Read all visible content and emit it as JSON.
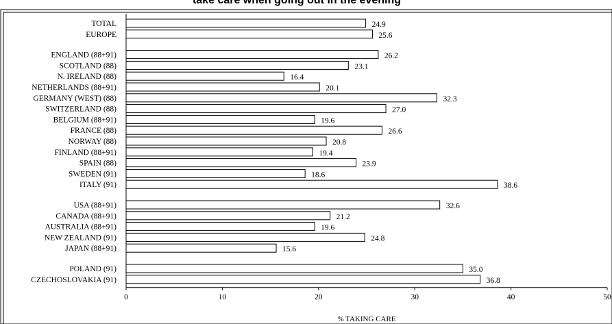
{
  "chart_data": {
    "type": "bar",
    "orientation": "horizontal",
    "title": "take care when going out in the evening",
    "xlabel": "% TAKING CARE",
    "ylabel": "",
    "xlim": [
      0,
      50
    ],
    "xticks": [
      "0",
      "10",
      "20",
      "30",
      "40",
      "50"
    ],
    "grid": false,
    "legend": "none",
    "bar_color": "#ffffff",
    "groups": [
      {
        "categories": [
          "TOTAL",
          "EUROPE"
        ],
        "values": [
          24.9,
          25.6
        ],
        "labels": [
          "24.9",
          "25.6"
        ]
      },
      {
        "categories": [
          "ENGLAND (88+91)",
          "SCOTLAND (88)",
          "N. IRELAND (88)",
          "NETHERLANDS (88+91)",
          "GERMANY (WEST) (88)",
          "SWITZERLAND (88)",
          "BELGIUM (88+91)",
          "FRANCE (88)",
          "NORWAY (88)",
          "FINLAND (88+91)",
          "SPAIN (88)",
          "SWEDEN (91)",
          "ITALY (91)"
        ],
        "values": [
          26.2,
          23.1,
          16.4,
          20.1,
          32.3,
          27.0,
          19.6,
          26.6,
          20.8,
          19.4,
          23.9,
          18.6,
          38.6
        ],
        "labels": [
          "26.2",
          "23.1",
          "16.4",
          "20.1",
          "32.3",
          "27.0",
          "19.6",
          "26.6",
          "20.8",
          "19.4",
          "23.9",
          "18.6",
          "38.6"
        ]
      },
      {
        "categories": [
          "USA (88+91)",
          "CANADA (88+91)",
          "AUSTRALIA (88+91)",
          "NEW ZEALAND (91)",
          "JAPAN (88+91)"
        ],
        "values": [
          32.6,
          21.2,
          19.6,
          24.8,
          15.6
        ],
        "labels": [
          "32.6",
          "21.2",
          "19.6",
          "24.8",
          "15.6"
        ]
      },
      {
        "categories": [
          "POLAND (91)",
          "CZECHOSLOVAKIA (91)"
        ],
        "values": [
          35.0,
          36.8
        ],
        "labels": [
          "35.0",
          "36.8"
        ]
      }
    ]
  }
}
